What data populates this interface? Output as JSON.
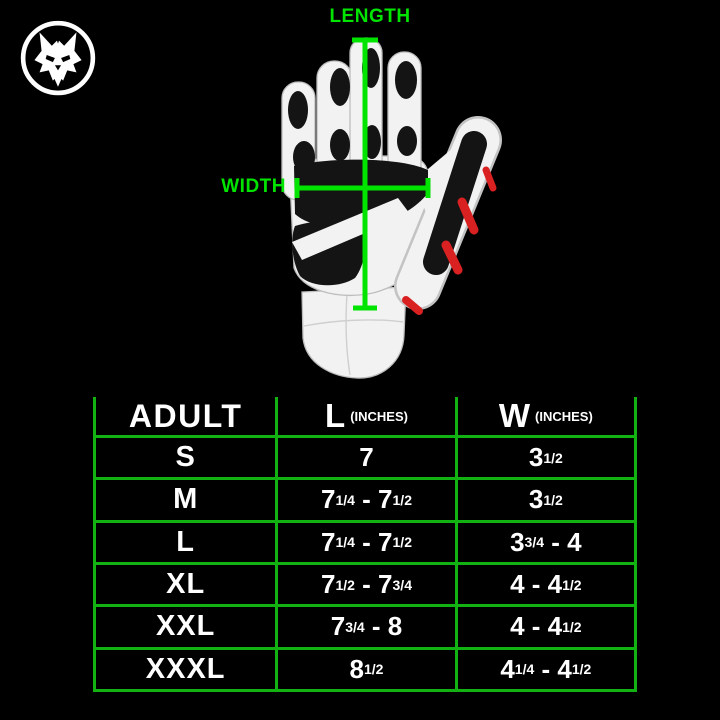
{
  "logo": {
    "icon": "wolf-head-icon"
  },
  "diagram": {
    "length_label": "LENGTH",
    "width_label": "WIDTH",
    "annotation_color": "#00e400",
    "glove_colors": {
      "body": "#f2f2f2",
      "pads": "#141414",
      "accent": "#d92121"
    }
  },
  "table": {
    "border_color": "#12b212",
    "header": {
      "size_col": "ADULT",
      "length_col": "L",
      "length_unit": "(INCHES)",
      "width_col": "W",
      "width_unit": "(INCHES)"
    },
    "rows": [
      {
        "size": "S",
        "length": "7",
        "width": "3[1/2]"
      },
      {
        "size": "M",
        "length": "7[1/4] - 7[1/2]",
        "width": "3[1/2]"
      },
      {
        "size": "L",
        "length": "7[1/4] - 7[1/2]",
        "width": "3[3/4] - 4"
      },
      {
        "size": "XL",
        "length": "7[1/2] - 7[3/4]",
        "width": "4 - 4[1/2]"
      },
      {
        "size": "XXL",
        "length": "7[3/4] - 8",
        "width": "4 - 4[1/2]"
      },
      {
        "size": "XXXL",
        "length": "8[1/2]",
        "width": "4[1/4] - 4[1/2]"
      }
    ]
  },
  "chart_data": {
    "type": "table",
    "columns": [
      "ADULT",
      "L (INCHES)",
      "W (INCHES)"
    ],
    "rows": [
      [
        "S",
        "7",
        "3 1/2"
      ],
      [
        "M",
        "7 1/4 - 7 1/2",
        "3 1/2"
      ],
      [
        "L",
        "7 1/4 - 7 1/2",
        "3 3/4 - 4"
      ],
      [
        "XL",
        "7 1/2 - 7 3/4",
        "4 - 4 1/2"
      ],
      [
        "XXL",
        "7 3/4 - 8",
        "4 - 4 1/2"
      ],
      [
        "XXXL",
        "8 1/2",
        "4 1/4 - 4 1/2"
      ]
    ],
    "annotations": [
      "LENGTH",
      "WIDTH"
    ]
  }
}
